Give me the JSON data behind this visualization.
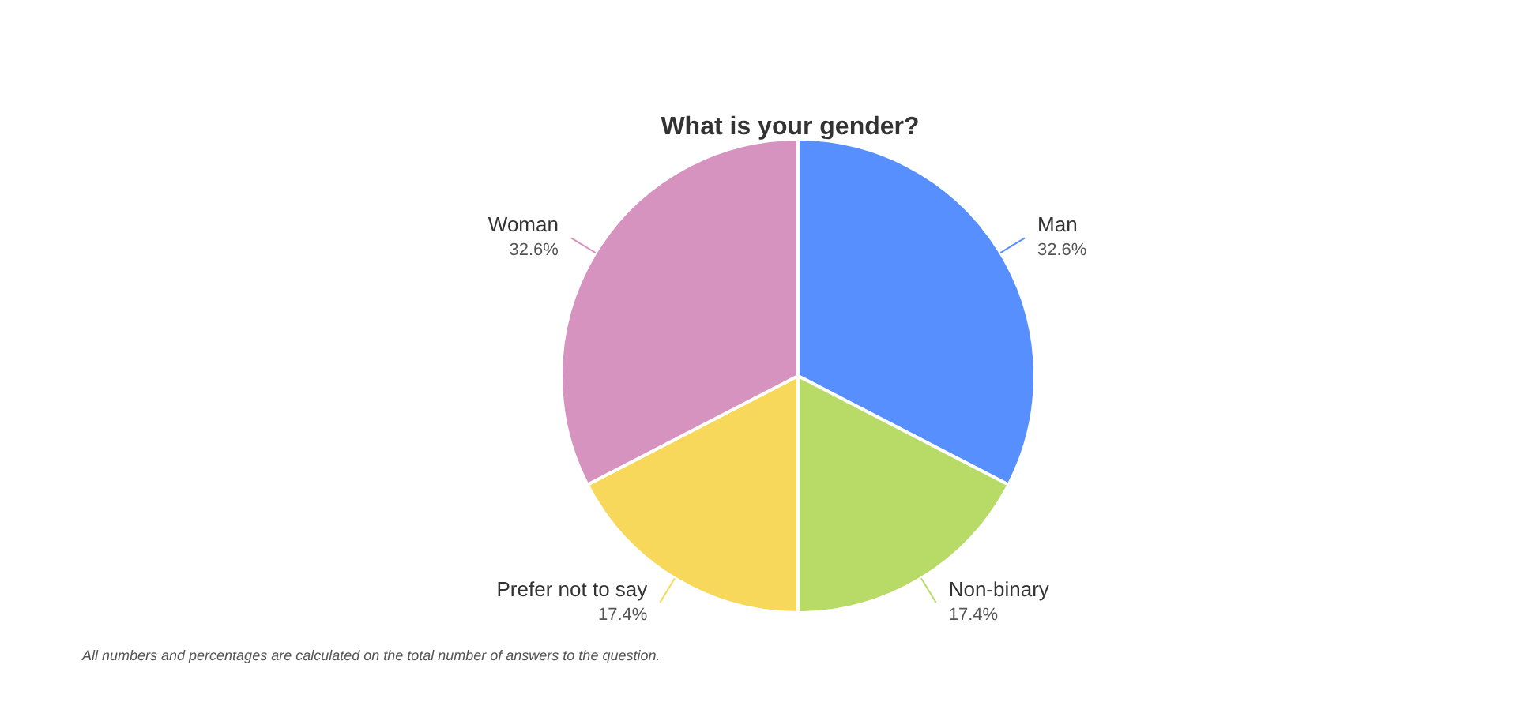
{
  "chart_data": {
    "type": "pie",
    "title": "What is your gender?",
    "categories": [
      "Man",
      "Non-binary",
      "Prefer not to say",
      "Woman"
    ],
    "values": [
      32.6,
      17.4,
      17.4,
      32.6
    ],
    "value_labels": [
      "32.6%",
      "17.4%",
      "17.4%",
      "32.6%"
    ],
    "colors": [
      "#578ffe",
      "#b8db68",
      "#f7d85a",
      "#d693bf"
    ],
    "annotations": [
      "All numbers and percentages are calculated on the total number of answers to the question."
    ]
  }
}
